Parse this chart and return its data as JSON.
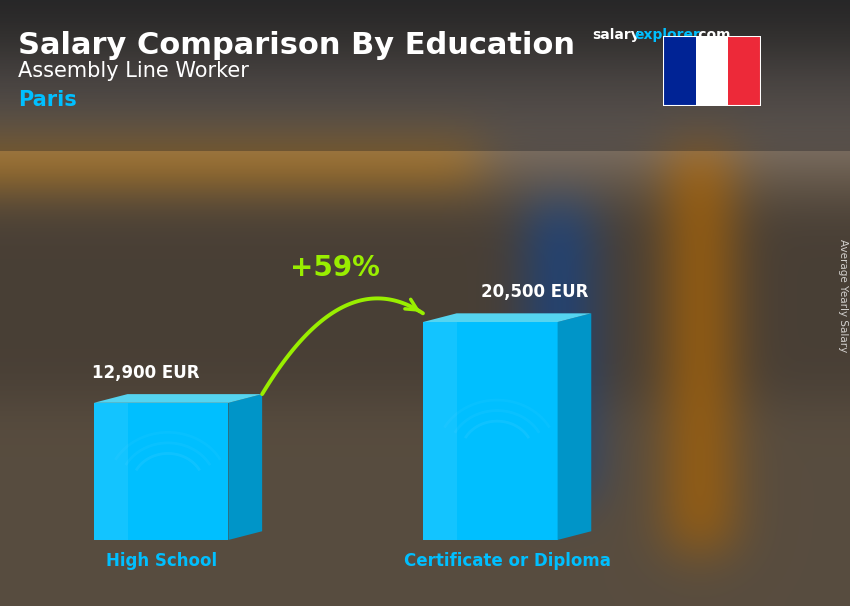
{
  "title_main": "Salary Comparison By Education",
  "title_sub": "Assembly Line Worker",
  "city": "Paris",
  "categories": [
    "High School",
    "Certificate or Diploma"
  ],
  "values": [
    12900,
    20500
  ],
  "value_labels": [
    "12,900 EUR",
    "20,500 EUR"
  ],
  "bar_face_color": "#00BFFF",
  "bar_top_color": "#55D4F0",
  "bar_side_color": "#0095C8",
  "bar_shadow_color": "#006088",
  "pct_label": "+59%",
  "pct_color": "#99EE00",
  "arc_color": "#99EE00",
  "ylabel_text": "Average Yearly Salary",
  "title_color": "#FFFFFF",
  "subtitle_color": "#FFFFFF",
  "city_color": "#00BFFF",
  "label_color": "#00BFFF",
  "value_color": "#FFFFFF",
  "france_flag_colors": [
    "#002395",
    "#FFFFFF",
    "#ED2939"
  ],
  "site_salary_color": "#FFFFFF",
  "site_explorer_color": "#00BFFF",
  "site_com_color": "#FFFFFF"
}
